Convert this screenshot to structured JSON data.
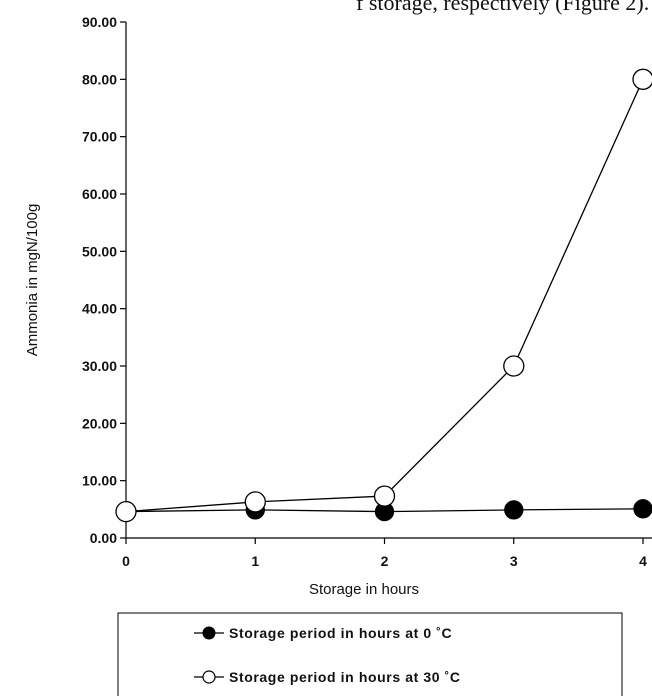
{
  "caption_fragment": "f storage, respectively (Figure 2).",
  "chart_data": {
    "type": "line",
    "title": "",
    "xlabel": "Storage in hours",
    "ylabel": "Ammonia in mgN/100g",
    "x": [
      0,
      1,
      2,
      3,
      4
    ],
    "x_tick_labels": [
      "0",
      "1",
      "2",
      "3",
      "4"
    ],
    "xlim": [
      0,
      4
    ],
    "ylim": [
      0,
      90
    ],
    "y_tick_labels": [
      "0.00",
      "10.00",
      "20.00",
      "30.00",
      "40.00",
      "50.00",
      "60.00",
      "70.00",
      "80.00",
      "90.00"
    ],
    "grid": false,
    "legend_position": "bottom",
    "series": [
      {
        "name": "Storage period in hours at 0 ˚C",
        "values": [
          4.6,
          4.9,
          4.6,
          4.9,
          5.1
        ],
        "marker": "filled-circle",
        "color": "#000000"
      },
      {
        "name": "Storage period in hours at 30 ˚C",
        "values": [
          4.6,
          6.3,
          7.3,
          30.0,
          80.0
        ],
        "marker": "open-circle",
        "color": "#000000"
      }
    ]
  }
}
